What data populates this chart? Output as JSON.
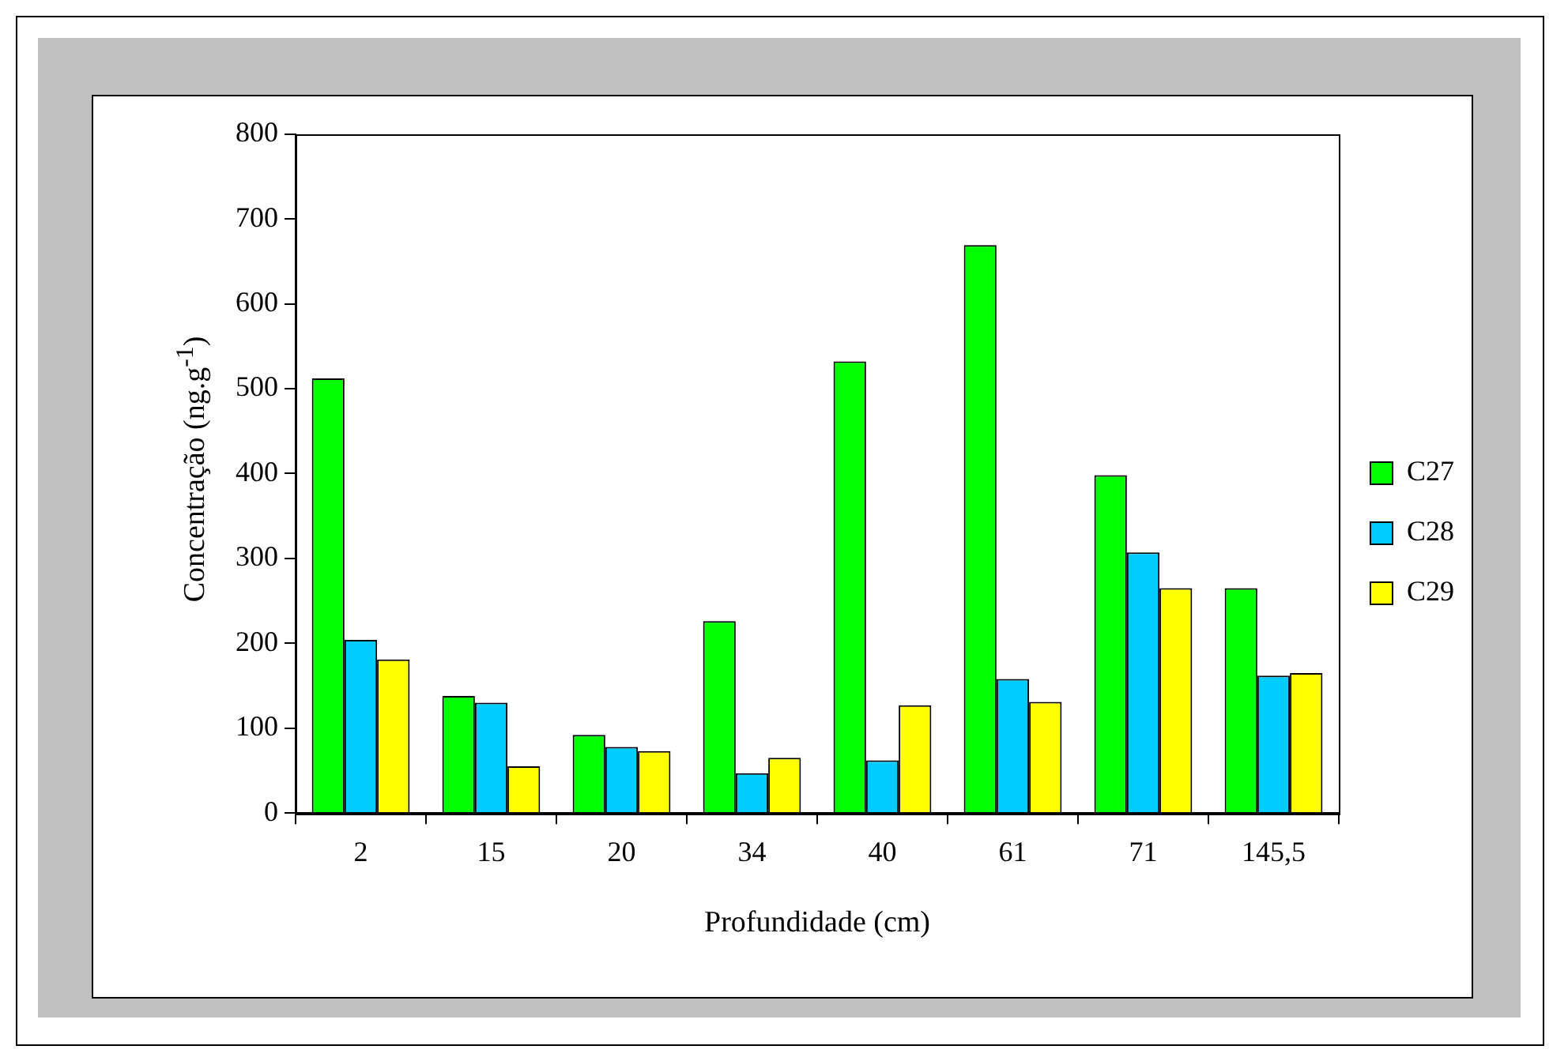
{
  "chart_data": {
    "type": "bar",
    "xlabel": "Profundidade (cm)",
    "ylabel": "Concentração (ng.g$^{-1}$)",
    "categories": [
      "2",
      "15",
      "20",
      "34",
      "40",
      "61",
      "71",
      "145,5"
    ],
    "series": [
      {
        "name": "C27",
        "color": "#00ff00",
        "values": [
          512,
          138,
          92,
          226,
          532,
          669,
          398,
          265
        ]
      },
      {
        "name": "C28",
        "color": "#00ccff",
        "values": [
          204,
          130,
          78,
          47,
          62,
          158,
          307,
          162
        ]
      },
      {
        "name": "C29",
        "color": "#ffff00",
        "values": [
          181,
          55,
          73,
          65,
          127,
          131,
          265,
          165
        ]
      }
    ],
    "ylim": [
      0,
      800
    ],
    "yticks": [
      0,
      100,
      200,
      300,
      400,
      500,
      600,
      700,
      800
    ],
    "grid": false,
    "legend": "right"
  }
}
